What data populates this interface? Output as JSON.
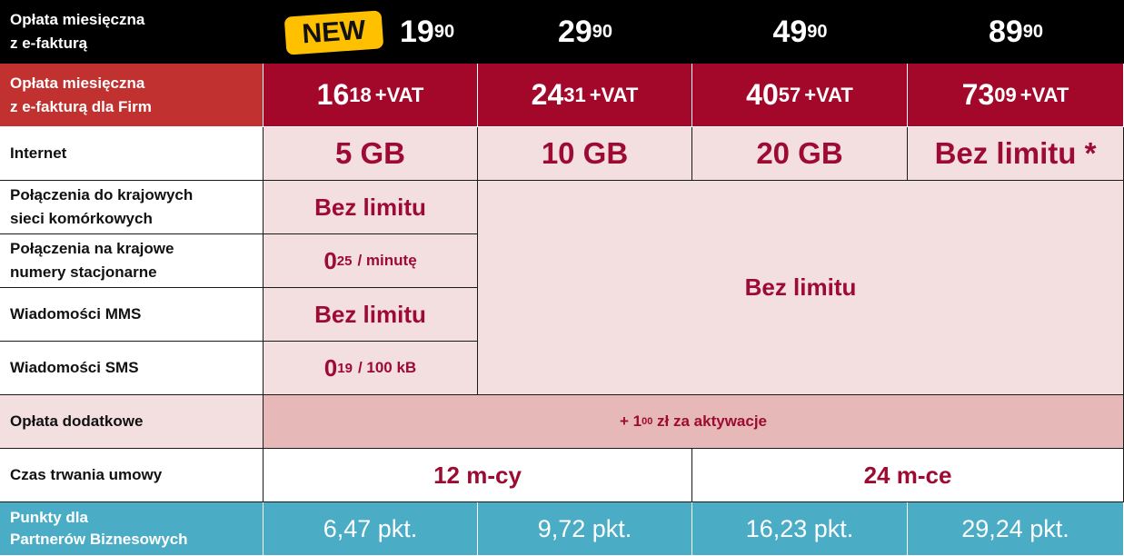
{
  "header": {
    "label_line1": "Opłata miesięczna",
    "label_line2": "z e-fakturą",
    "badge": "NEW",
    "plans": [
      {
        "whole": "19",
        "fraction": "90"
      },
      {
        "whole": "29",
        "fraction": "90"
      },
      {
        "whole": "49",
        "fraction": "90"
      },
      {
        "whole": "89",
        "fraction": "90"
      }
    ]
  },
  "business": {
    "label_line1": "Opłata miesięczna",
    "label_line2": "z e-fakturą dla Firm",
    "vat": "+VAT",
    "plans": [
      {
        "whole": "16",
        "fraction": "18"
      },
      {
        "whole": "24",
        "fraction": "31"
      },
      {
        "whole": "40",
        "fraction": "57"
      },
      {
        "whole": "73",
        "fraction": "09"
      }
    ]
  },
  "internet": {
    "label": "Internet",
    "values": [
      "5 GB",
      "10 GB",
      "20 GB",
      "Bez limitu *"
    ]
  },
  "mobile_calls": {
    "label_line1": "Połączenia do krajowych",
    "label_line2": "sieci komórkowych",
    "value": "Bez limitu"
  },
  "landline_calls": {
    "label_line1": "Połączenia na krajowe",
    "label_line2": "numery stacjonarne",
    "whole": "0",
    "fraction": "25",
    "unit": "/ minutę"
  },
  "mms": {
    "label": "Wiadomości MMS",
    "value": "Bez limitu"
  },
  "sms": {
    "label": "Wiadomości SMS",
    "whole": "0",
    "fraction": "19",
    "unit": "/ 100 kB"
  },
  "unlimited_block": "Bez limitu",
  "extra_fee": {
    "label": "Opłata dodatkowe",
    "prefix": "+ 1",
    "fraction": "00",
    "suffix": " zł za aktywacje"
  },
  "contract": {
    "label": "Czas trwania umowy",
    "short": "12 m-cy",
    "long": "24 m-ce"
  },
  "points": {
    "label_line1": "Punkty dla",
    "label_line2": "Partnerów Biznesowych",
    "values": [
      "6,47 pkt.",
      "9,72 pkt.",
      "16,23 pkt.",
      "29,24 pkt."
    ]
  },
  "colors": {
    "header_bg": "#000000",
    "business_bg": "#a3082a",
    "business_label_bg": "#c0312f",
    "accent_text": "#9e0b32",
    "pink_bg": "#f3dfe0",
    "fee_bg": "#e6b8b7",
    "points_bg": "#4bacc6",
    "badge_bg": "#ffc000"
  }
}
